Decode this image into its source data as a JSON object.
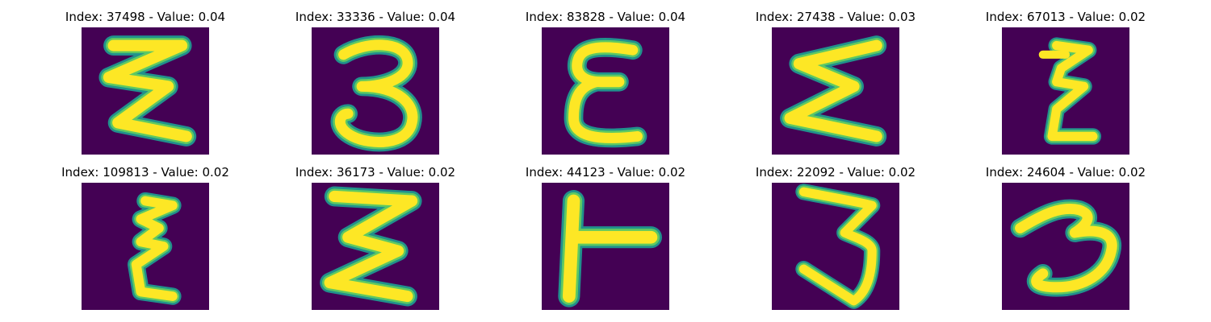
{
  "panels": [
    {
      "title": "Index: 37498 - Value: 0.04",
      "glyph": "zigzag-3-stroke"
    },
    {
      "title": "Index: 33336 - Value: 0.04",
      "glyph": "digit-3"
    },
    {
      "title": "Index: 83828 - Value: 0.04",
      "glyph": "epsilon"
    },
    {
      "title": "Index: 27438 - Value: 0.03",
      "glyph": "zigzag-sigma"
    },
    {
      "title": "Index: 67013 - Value: 0.02",
      "glyph": "narrow-zigzag"
    },
    {
      "title": "Index: 109813 - Value: 0.02",
      "glyph": "narrow-3-zigzag"
    },
    {
      "title": "Index: 36173 - Value: 0.02",
      "glyph": "zigzag-3-wide"
    },
    {
      "title": "Index: 44123 - Value: 0.02",
      "glyph": "sideways-T"
    },
    {
      "title": "Index: 22092 - Value: 0.02",
      "glyph": "digit-3-tall"
    },
    {
      "title": "Index: 24604 - Value: 0.02",
      "glyph": "digit-3-slanted"
    }
  ],
  "colors": {
    "background": "#440154",
    "stroke_outer": "#21918c",
    "stroke_mid": "#5ec962",
    "stroke_inner": "#fde725"
  }
}
